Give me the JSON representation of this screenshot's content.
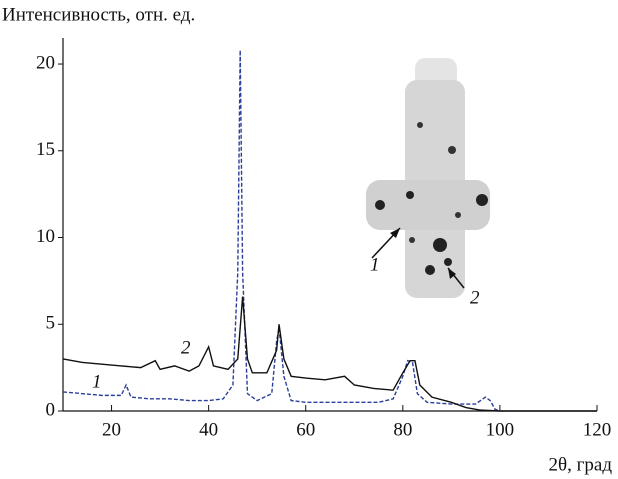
{
  "chart_data": {
    "type": "line",
    "y_label": "Интенсивность, отн. ед.",
    "x_label": "2θ, град",
    "xlim": [
      10,
      120
    ],
    "xticks": [
      20,
      40,
      60,
      80,
      100,
      120
    ],
    "ylim": [
      0,
      21.5
    ],
    "yticks": [
      0,
      5,
      10,
      15,
      20
    ],
    "series": [
      {
        "name": "1",
        "color": "#2b3f9a",
        "dashed": true,
        "x": [
          10,
          14,
          18,
          22,
          23,
          24,
          28,
          32,
          36,
          40,
          43,
          45,
          46,
          46.5,
          47,
          48,
          50,
          53,
          54,
          54.5,
          55.5,
          57,
          60,
          65,
          70,
          75,
          78,
          80,
          81,
          82,
          83,
          85,
          90,
          95,
          97,
          98,
          99,
          100
        ],
        "values": [
          1.1,
          1.0,
          0.9,
          0.9,
          1.5,
          0.8,
          0.7,
          0.7,
          0.6,
          0.6,
          0.7,
          1.5,
          8,
          20.8,
          8,
          1.0,
          0.6,
          1.0,
          4.0,
          4.8,
          2.0,
          0.6,
          0.5,
          0.5,
          0.5,
          0.5,
          0.7,
          2.0,
          2.9,
          2.8,
          1.0,
          0.5,
          0.4,
          0.4,
          0.8,
          0.6,
          0.1,
          0
        ]
      },
      {
        "name": "2",
        "color": "#111111",
        "dashed": false,
        "x": [
          10,
          14,
          18,
          22,
          26,
          29,
          30,
          33,
          36,
          38,
          40,
          41,
          44,
          46,
          47,
          48,
          49,
          52,
          54,
          54.5,
          55.5,
          57,
          60,
          64,
          68,
          70,
          74,
          78,
          80,
          81.5,
          82.5,
          83.5,
          86,
          90,
          93,
          96,
          100,
          120
        ],
        "values": [
          3.0,
          2.8,
          2.7,
          2.6,
          2.5,
          2.9,
          2.4,
          2.6,
          2.3,
          2.6,
          3.7,
          2.6,
          2.4,
          3.0,
          6.6,
          3.0,
          2.2,
          2.2,
          3.5,
          5.0,
          3.0,
          2.0,
          1.9,
          1.8,
          2.0,
          1.5,
          1.3,
          1.2,
          2.2,
          2.9,
          2.9,
          1.5,
          0.8,
          0.5,
          0.2,
          0.05,
          0,
          0
        ]
      }
    ],
    "annotations": [
      "1",
      "2",
      "1",
      "2"
    ]
  }
}
